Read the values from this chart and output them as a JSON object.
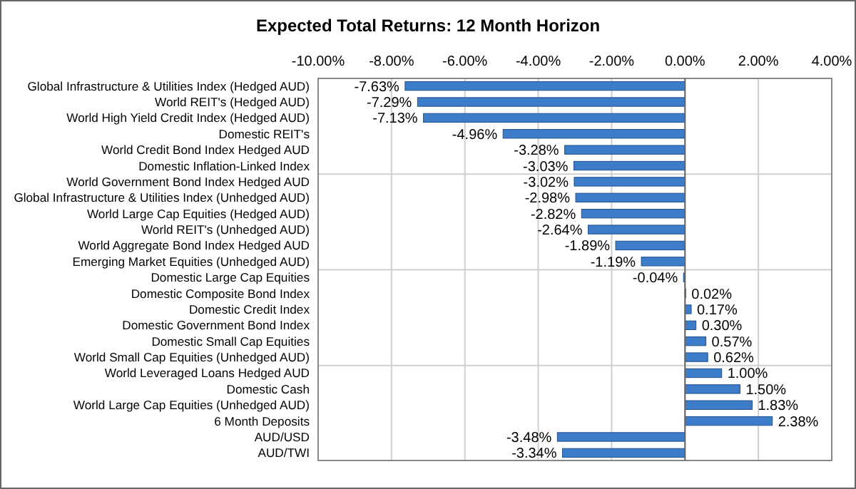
{
  "chart_data": {
    "type": "bar",
    "orientation": "horizontal",
    "title": "Expected Total Returns: 12 Month Horizon",
    "categories": [
      "Global Infrastructure & Utilities Index (Hedged AUD)",
      "World REIT's (Hedged AUD)",
      "World High Yield Credit Index (Hedged AUD)",
      "Domestic REIT's",
      "World Credit Bond Index Hedged AUD",
      "Domestic Inflation-Linked Index",
      "World Government Bond Index Hedged AUD",
      "Global Infrastructure & Utilities Index (Unhedged AUD)",
      "World Large Cap Equities (Hedged AUD)",
      "World REIT's (Unhedged AUD)",
      "World Aggregate Bond Index Hedged AUD",
      "Emerging Market Equities (Unhedged AUD)",
      "Domestic Large Cap Equities",
      "Domestic Composite Bond Index",
      "Domestic Credit Index",
      "Domestic Government Bond Index",
      "Domestic Small Cap Equities",
      "World Small Cap Equities (Unhedged AUD)",
      "World Leveraged Loans Hedged AUD",
      "Domestic Cash",
      "World Large Cap Equities (Unhedged AUD)",
      "6 Month Deposits",
      "AUD/USD",
      "AUD/TWI"
    ],
    "values": [
      -7.63,
      -7.29,
      -7.13,
      -4.96,
      -3.28,
      -3.03,
      -3.02,
      -2.98,
      -2.82,
      -2.64,
      -1.89,
      -1.19,
      -0.04,
      0.02,
      0.17,
      0.3,
      0.57,
      0.62,
      1.0,
      1.5,
      1.83,
      2.38,
      -3.48,
      -3.34
    ],
    "value_labels": [
      "-7.63%",
      "-7.29%",
      "-7.13%",
      "-4.96%",
      "-3.28%",
      "-3.03%",
      "-3.02%",
      "-2.98%",
      "-2.82%",
      "-2.64%",
      "-1.89%",
      "-1.19%",
      "-0.04%",
      "0.02%",
      "0.17%",
      "0.30%",
      "0.57%",
      "0.62%",
      "1.00%",
      "1.50%",
      "1.83%",
      "2.38%",
      "-3.48%",
      "-3.34%"
    ],
    "color": "#3d7cc9",
    "xlim": [
      -10,
      4
    ],
    "xticks": [
      {
        "value": -10,
        "label": "-10.00%"
      },
      {
        "value": -8,
        "label": "-8.00%"
      },
      {
        "value": -6,
        "label": "-6.00%"
      },
      {
        "value": -4,
        "label": "-4.00%"
      },
      {
        "value": -2,
        "label": "-2.00%"
      },
      {
        "value": 0,
        "label": "0.00%"
      },
      {
        "value": 2,
        "label": "2.00%"
      },
      {
        "value": 4,
        "label": "4.00%"
      }
    ],
    "grid": true
  }
}
